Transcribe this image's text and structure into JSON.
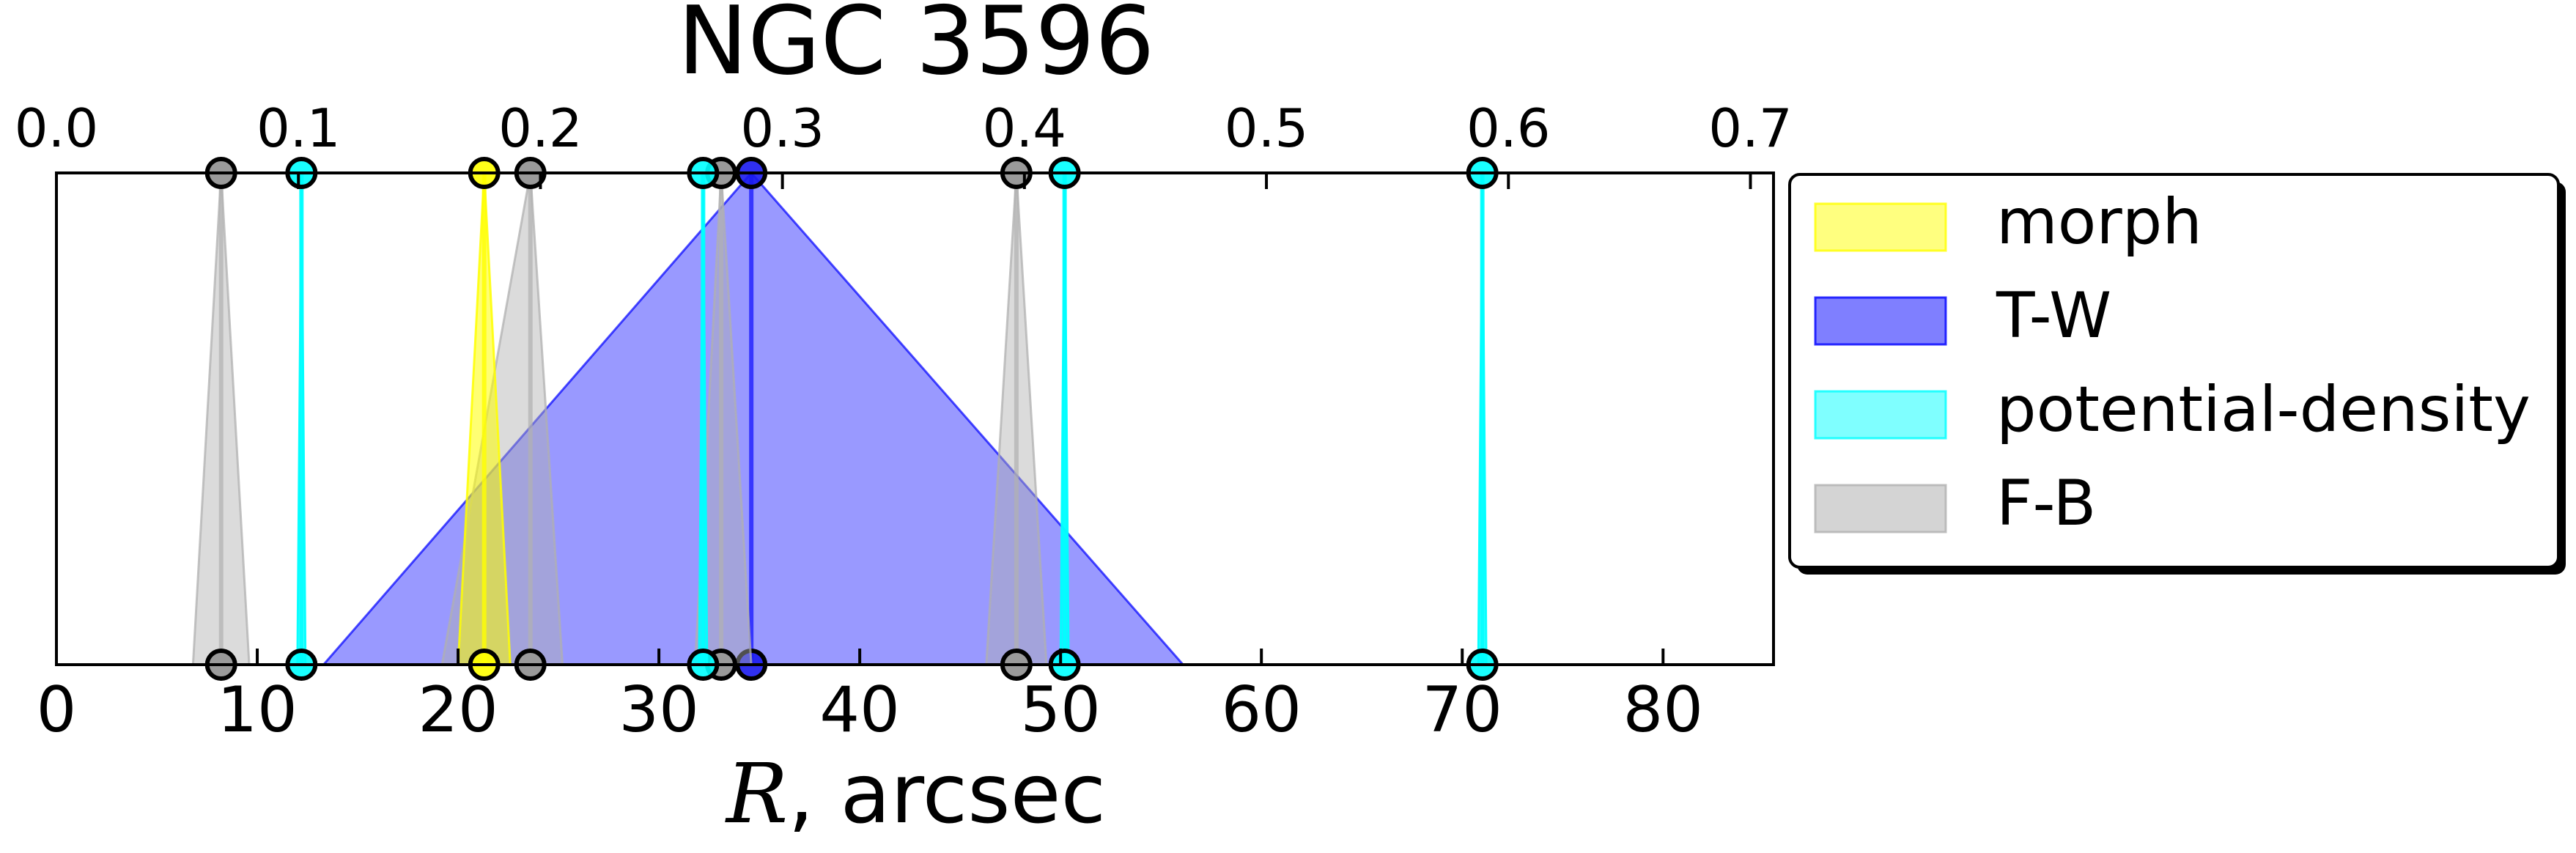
{
  "chart_data": {
    "type": "area",
    "title": "NGC 3596",
    "xlabel_math": "R",
    "xlabel_rest": ", arcsec",
    "xlim": [
      0,
      85.5
    ],
    "x_ticks": [
      0,
      10,
      20,
      30,
      40,
      50,
      60,
      70,
      80
    ],
    "top_axis": {
      "ticks": [
        "0.0",
        "0.1",
        "0.2",
        "0.3",
        "0.4",
        "0.5",
        "0.6",
        "0.7"
      ],
      "tick_positions_r": [
        0,
        12.05,
        24.1,
        36.15,
        48.2,
        60.25,
        72.3,
        84.35
      ]
    },
    "grid": false,
    "legend_placement": "right, outside plot",
    "legend": [
      {
        "label": "morph",
        "color": "#ffff00"
      },
      {
        "label": "T-W",
        "color": "#0000ff"
      },
      {
        "label": "potential-density",
        "color": "#00ffff"
      },
      {
        "label": "F-B",
        "color": "#b0b0b0"
      }
    ],
    "series": [
      {
        "name": "morph",
        "color": "#ffff00",
        "opacity": 0.55,
        "markers": [
          {
            "r": 21.3,
            "from": 20.0,
            "to": 22.6
          }
        ]
      },
      {
        "name": "T-W",
        "color": "#0000ff",
        "opacity": 0.4,
        "markers": [
          {
            "r": 34.6,
            "from": 13.3,
            "to": 56.1
          }
        ]
      },
      {
        "name": "potential-density",
        "color": "#00ffff",
        "opacity": 0.65,
        "markers": [
          {
            "r": 12.2,
            "from": 12.0,
            "to": 12.4
          },
          {
            "r": 32.2,
            "from": 32.0,
            "to": 32.4
          },
          {
            "r": 50.2,
            "from": 50.0,
            "to": 50.4
          },
          {
            "r": 71.0,
            "from": 70.8,
            "to": 71.2
          }
        ]
      },
      {
        "name": "F-B",
        "color": "#b0b0b0",
        "opacity": 0.45,
        "markers": [
          {
            "r": 8.2,
            "from": 6.8,
            "to": 9.6
          },
          {
            "r": 23.6,
            "from": 19.2,
            "to": 25.2
          },
          {
            "r": 33.1,
            "from": 31.8,
            "to": 34.6
          },
          {
            "r": 47.8,
            "from": 46.3,
            "to": 49.3
          }
        ]
      }
    ]
  }
}
